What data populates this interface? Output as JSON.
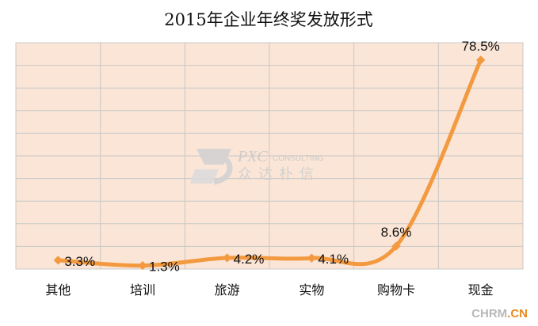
{
  "chart_data": {
    "type": "line",
    "title": "2015年企业年终奖发放形式",
    "categories": [
      "其他",
      "培训",
      "旅游",
      "实物",
      "购物卡",
      "现金"
    ],
    "values": [
      3.3,
      1.3,
      4.2,
      4.1,
      8.6,
      78.5
    ],
    "data_labels": [
      "3.3%",
      "1.3%",
      "4.2%",
      "4.1%",
      "8.6%",
      "78.5%"
    ],
    "xlabel": "",
    "ylabel": "",
    "grid": true,
    "legend": "none",
    "colors": {
      "line": "#F39A40",
      "plot_background": "#FBE5D6",
      "grid": "#C8C8C8"
    }
  },
  "watermark": {
    "brand_en": "PXC",
    "brand_sub": "CONSULTING",
    "brand_cn": "众达朴信"
  },
  "corner_mark": {
    "text_part1": "CHRM",
    "text_part2": ".CN"
  }
}
